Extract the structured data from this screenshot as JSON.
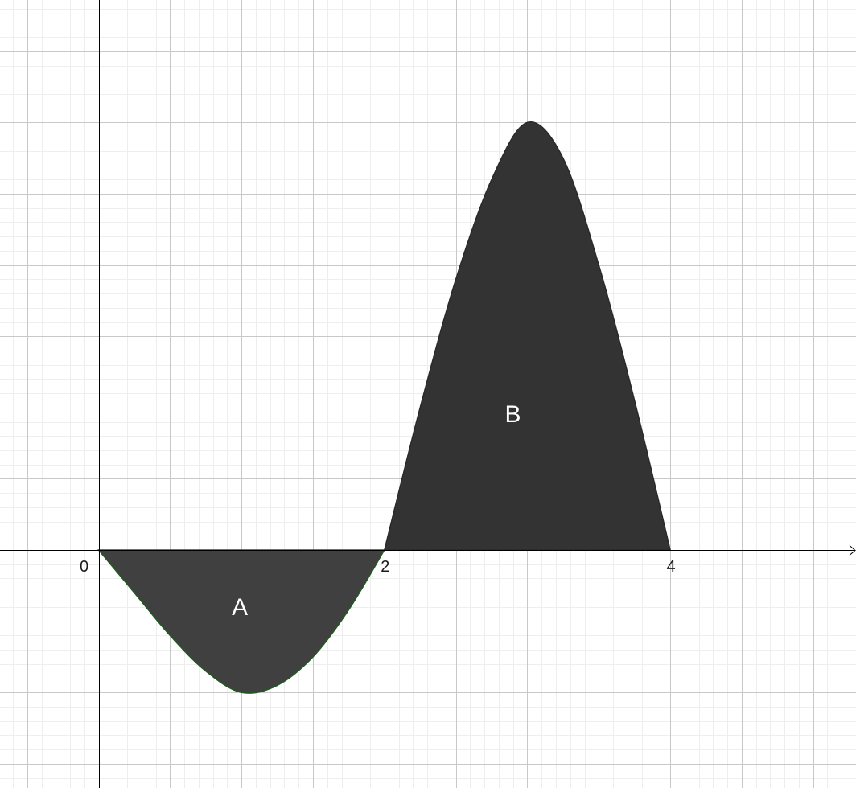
{
  "colors": {
    "background": "#ffffff",
    "minor_grid": "#eeeeee",
    "major_grid": "#c8c8c8",
    "axis": "#000000",
    "region_A_fill": "#404040",
    "region_A_stroke": "#1f5a1f",
    "region_B_fill": "#333333",
    "region_B_stroke": "#2a2a2a",
    "region_label": "#ffffff"
  },
  "chart_data": {
    "type": "area",
    "title": "",
    "xlabel": "",
    "ylabel": "",
    "xlim": [
      -0.69,
      5.3
    ],
    "ylim": [
      -1.67,
      3.86
    ],
    "grid": true,
    "x_ticks": [
      0,
      2,
      4
    ],
    "x_tick_labels": [
      "0",
      "2",
      "4"
    ],
    "regions": [
      {
        "label": "A",
        "x_range": [
          0,
          2
        ],
        "min_value": -1.0,
        "x_at_min": 1.0,
        "points": [
          [
            0,
            0
          ],
          [
            0.25,
            -0.3
          ],
          [
            0.5,
            -0.6
          ],
          [
            0.75,
            -0.85
          ],
          [
            1.0,
            -1.0
          ],
          [
            1.25,
            -0.95
          ],
          [
            1.5,
            -0.75
          ],
          [
            1.75,
            -0.42
          ],
          [
            2.0,
            0
          ]
        ]
      },
      {
        "label": "B",
        "x_range": [
          2,
          4
        ],
        "max_value": 3.0,
        "x_at_max": 3.0,
        "points": [
          [
            2.0,
            0
          ],
          [
            2.25,
            1.0
          ],
          [
            2.5,
            1.9
          ],
          [
            2.75,
            2.6
          ],
          [
            3.0,
            3.0
          ],
          [
            3.25,
            2.75
          ],
          [
            3.5,
            2.0
          ],
          [
            3.75,
            1.05
          ],
          [
            4.0,
            0
          ]
        ]
      }
    ]
  }
}
